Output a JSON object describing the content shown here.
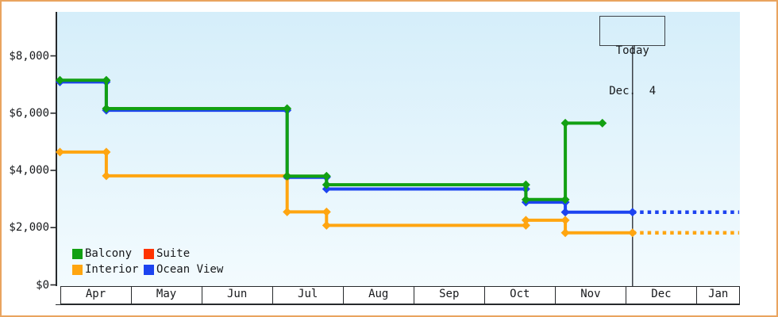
{
  "chart": {
    "today_box": {
      "line1": "Today",
      "line2": "Dec.  4"
    },
    "y_axis": {
      "labels": [
        "$0",
        "$2,000",
        "$4,000",
        "$6,000",
        "$8,000"
      ],
      "values": [
        0,
        2000,
        4000,
        6000,
        8000
      ]
    },
    "x_axis": {
      "months": [
        "Apr",
        "May",
        "Jun",
        "Jul",
        "Aug",
        "Sep",
        "Oct",
        "Nov",
        "Dec",
        "Jan"
      ]
    },
    "colors": {
      "border": "#e9a45f",
      "axis": "#26292c",
      "today_line": "#3d4248",
      "plot_bg_top": "#d5eefa",
      "plot_bg_bottom": "#f3fbfe"
    }
  },
  "chart_data": {
    "type": "line",
    "title": "",
    "style": "stepped price history with diamond markers, dashed segments after today are projections",
    "ylim": [
      0,
      9500
    ],
    "y_ticks": [
      0,
      2000,
      4000,
      6000,
      8000
    ],
    "x_range": [
      "Apr 1",
      "Jan 19"
    ],
    "grid": false,
    "legend_position": "bottom-left-inside",
    "today": {
      "label": "Dec. 4",
      "day": 247
    },
    "series": [
      {
        "name": "Balcony",
        "color": "#12a012",
        "points": [
          {
            "date": "Apr 1",
            "day": 0,
            "value": 7150
          },
          {
            "date": "Apr 21",
            "day": 20,
            "value": 7150
          },
          {
            "date": "Apr 21",
            "day": 20,
            "value": 6160
          },
          {
            "date": "Jul 8",
            "day": 98,
            "value": 6160
          },
          {
            "date": "Jul 8",
            "day": 98,
            "value": 3800
          },
          {
            "date": "Jul 25",
            "day": 115,
            "value": 3800
          },
          {
            "date": "Jul 25",
            "day": 115,
            "value": 3500
          },
          {
            "date": "Oct 19",
            "day": 201,
            "value": 3500
          },
          {
            "date": "Oct 19",
            "day": 201,
            "value": 2980
          },
          {
            "date": "Nov 5",
            "day": 218,
            "value": 2980
          },
          {
            "date": "Nov 5",
            "day": 218,
            "value": 5650
          },
          {
            "date": "Nov 21",
            "day": 234,
            "value": 5650
          }
        ]
      },
      {
        "name": "Suite",
        "color": "#ff3300",
        "points": []
      },
      {
        "name": "Interior",
        "color": "#ffa510",
        "points": [
          {
            "date": "Apr 1",
            "day": 0,
            "value": 4640
          },
          {
            "date": "Apr 21",
            "day": 20,
            "value": 4640
          },
          {
            "date": "Apr 21",
            "day": 20,
            "value": 3810
          },
          {
            "date": "Jul 8",
            "day": 98,
            "value": 3810
          },
          {
            "date": "Jul 8",
            "day": 98,
            "value": 2550
          },
          {
            "date": "Jul 25",
            "day": 115,
            "value": 2550
          },
          {
            "date": "Jul 25",
            "day": 115,
            "value": 2080
          },
          {
            "date": "Oct 19",
            "day": 201,
            "value": 2080
          },
          {
            "date": "Oct 19",
            "day": 201,
            "value": 2260
          },
          {
            "date": "Nov 5",
            "day": 218,
            "value": 2260
          },
          {
            "date": "Nov 5",
            "day": 218,
            "value": 1820
          },
          {
            "date": "Dec 4",
            "day": 247,
            "value": 1820
          }
        ],
        "forecast_dashed_to": {
          "date": "Jan 19",
          "day": 293,
          "value": 1820
        }
      },
      {
        "name": "Ocean View",
        "color": "#1c43f0",
        "points": [
          {
            "date": "Apr 1",
            "day": 0,
            "value": 7090
          },
          {
            "date": "Apr 21",
            "day": 20,
            "value": 7090
          },
          {
            "date": "Apr 21",
            "day": 20,
            "value": 6100
          },
          {
            "date": "Jul 8",
            "day": 98,
            "value": 6100
          },
          {
            "date": "Jul 8",
            "day": 98,
            "value": 3760
          },
          {
            "date": "Jul 25",
            "day": 115,
            "value": 3760
          },
          {
            "date": "Jul 25",
            "day": 115,
            "value": 3350
          },
          {
            "date": "Oct 19",
            "day": 201,
            "value": 3350
          },
          {
            "date": "Oct 19",
            "day": 201,
            "value": 2890
          },
          {
            "date": "Nov 5",
            "day": 218,
            "value": 2890
          },
          {
            "date": "Nov 5",
            "day": 218,
            "value": 2540
          },
          {
            "date": "Dec 4",
            "day": 247,
            "value": 2540
          }
        ],
        "forecast_dashed_to": {
          "date": "Jan 19",
          "day": 293,
          "value": 2540
        }
      }
    ]
  }
}
